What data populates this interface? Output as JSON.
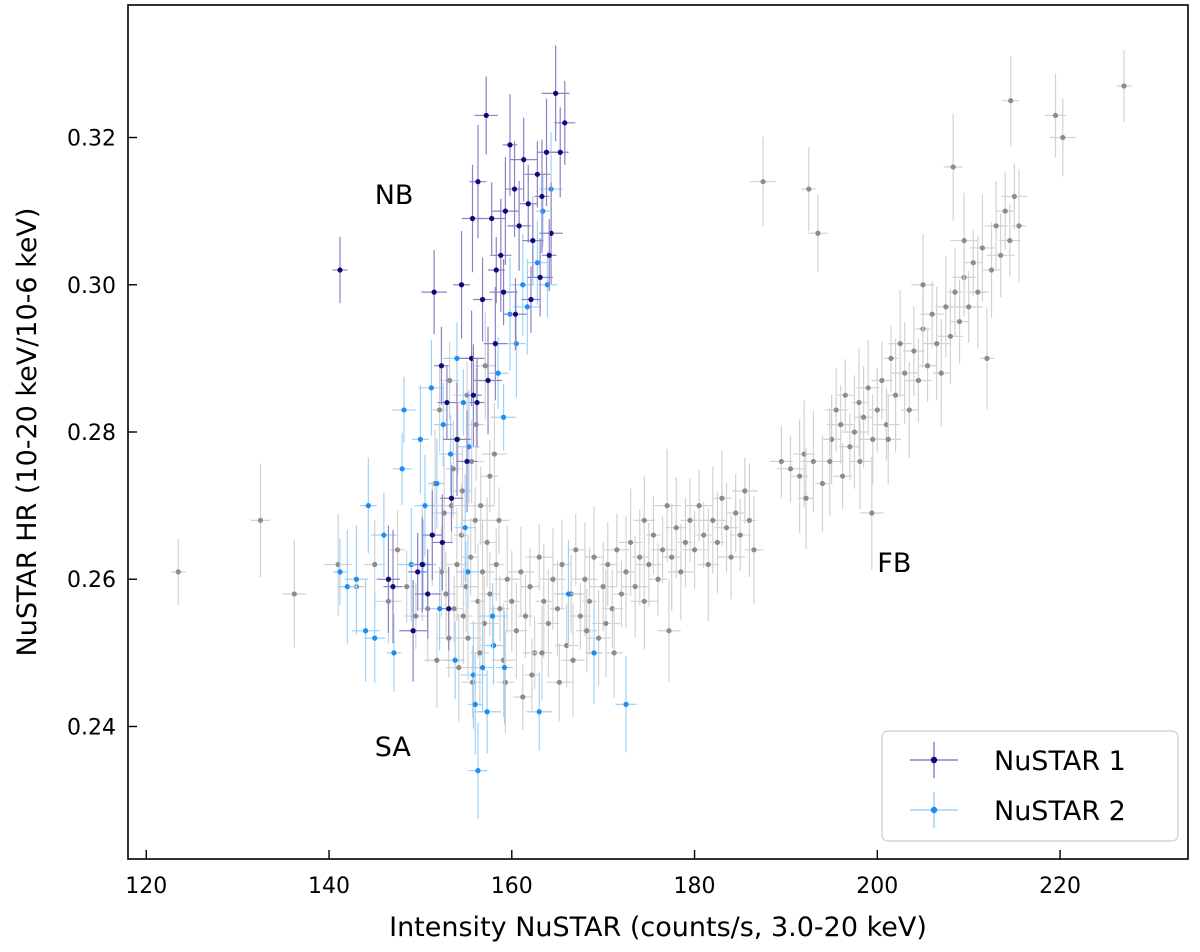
{
  "chart_data": {
    "type": "scatter",
    "title": "",
    "xlabel": "Intensity NuSTAR (counts/s, 3.0-20 keV)",
    "ylabel": "NuSTAR HR (10-20 keV/10-6 keV)",
    "xlim": [
      118,
      234
    ],
    "ylim": [
      0.222,
      0.338
    ],
    "xticks": [
      120,
      140,
      160,
      180,
      200,
      220
    ],
    "yticks": [
      0.24,
      0.26,
      0.28,
      0.3,
      0.32
    ],
    "xtick_labels": [
      "120",
      "140",
      "160",
      "180",
      "200",
      "220"
    ],
    "ytick_labels": [
      "0.24",
      "0.26",
      "0.28",
      "0.30",
      "0.32"
    ],
    "grid": false,
    "legend_position": "bottom-right",
    "annotations": [
      {
        "text": "NB",
        "x": 145,
        "y": 0.311
      },
      {
        "text": "SA",
        "x": 145,
        "y": 0.236
      },
      {
        "text": "FB",
        "x": 200,
        "y": 0.261
      }
    ],
    "series": [
      {
        "name": "background",
        "legend": false,
        "color": "#8c8c8c",
        "error_color": "#d2d2d2",
        "points": [
          [
            123.5,
            0.261
          ],
          [
            132.5,
            0.268
          ],
          [
            136.2,
            0.258
          ],
          [
            141,
            0.262
          ],
          [
            143,
            0.259
          ],
          [
            145,
            0.262
          ],
          [
            146.5,
            0.257
          ],
          [
            147.5,
            0.264
          ],
          [
            148.5,
            0.259
          ],
          [
            149.5,
            0.255
          ],
          [
            150.2,
            0.262
          ],
          [
            150.8,
            0.256
          ],
          [
            151.3,
            0.266
          ],
          [
            151.8,
            0.249
          ],
          [
            152.3,
            0.261
          ],
          [
            152.8,
            0.258
          ],
          [
            153.1,
            0.252
          ],
          [
            153.4,
            0.27
          ],
          [
            153.7,
            0.256
          ],
          [
            154.0,
            0.262
          ],
          [
            154.2,
            0.248
          ],
          [
            154.5,
            0.266
          ],
          [
            154.7,
            0.255
          ],
          [
            155.0,
            0.259
          ],
          [
            155.2,
            0.252
          ],
          [
            155.5,
            0.263
          ],
          [
            155.7,
            0.246
          ],
          [
            156.0,
            0.268
          ],
          [
            156.3,
            0.257
          ],
          [
            156.5,
            0.25
          ],
          [
            156.8,
            0.261
          ],
          [
            157.0,
            0.254
          ],
          [
            157.3,
            0.265
          ],
          [
            157.6,
            0.258
          ],
          [
            158.0,
            0.251
          ],
          [
            158.3,
            0.262
          ],
          [
            158.7,
            0.256
          ],
          [
            159.1,
            0.249
          ],
          [
            159.5,
            0.26
          ],
          [
            160.0,
            0.257
          ],
          [
            160.5,
            0.253
          ],
          [
            161.0,
            0.261
          ],
          [
            161.5,
            0.255
          ],
          [
            162.0,
            0.259
          ],
          [
            162.5,
            0.25
          ],
          [
            163.0,
            0.263
          ],
          [
            163.5,
            0.257
          ],
          [
            164.0,
            0.254
          ],
          [
            164.5,
            0.26
          ],
          [
            165.0,
            0.256
          ],
          [
            165.5,
            0.262
          ],
          [
            166.0,
            0.251
          ],
          [
            166.5,
            0.258
          ],
          [
            167.0,
            0.264
          ],
          [
            167.5,
            0.255
          ],
          [
            168.0,
            0.26
          ],
          [
            168.5,
            0.257
          ],
          [
            169.0,
            0.263
          ],
          [
            169.5,
            0.252
          ],
          [
            170.0,
            0.259
          ],
          [
            170.5,
            0.262
          ],
          [
            171.0,
            0.256
          ],
          [
            171.5,
            0.264
          ],
          [
            172.0,
            0.258
          ],
          [
            172.5,
            0.261
          ],
          [
            173.0,
            0.265
          ],
          [
            173.5,
            0.259
          ],
          [
            174.0,
            0.263
          ],
          [
            174.5,
            0.268
          ],
          [
            175.0,
            0.262
          ],
          [
            175.5,
            0.266
          ],
          [
            176.0,
            0.26
          ],
          [
            176.5,
            0.264
          ],
          [
            177.0,
            0.27
          ],
          [
            177.5,
            0.263
          ],
          [
            178.0,
            0.267
          ],
          [
            178.5,
            0.261
          ],
          [
            179.0,
            0.265
          ],
          [
            179.5,
            0.268
          ],
          [
            180.0,
            0.264
          ],
          [
            180.5,
            0.27
          ],
          [
            181.0,
            0.266
          ],
          [
            181.5,
            0.262
          ],
          [
            182.0,
            0.268
          ],
          [
            182.5,
            0.265
          ],
          [
            183.0,
            0.271
          ],
          [
            183.5,
            0.267
          ],
          [
            184.0,
            0.263
          ],
          [
            184.5,
            0.269
          ],
          [
            185.0,
            0.266
          ],
          [
            185.5,
            0.272
          ],
          [
            186.0,
            0.268
          ],
          [
            186.5,
            0.264
          ],
          [
            177.2,
            0.253
          ],
          [
            174.5,
            0.257
          ],
          [
            171.2,
            0.25
          ],
          [
            168.2,
            0.253
          ],
          [
            165.2,
            0.246
          ],
          [
            162.2,
            0.247
          ],
          [
            161.2,
            0.244
          ],
          [
            166.7,
            0.249
          ],
          [
            170.3,
            0.254
          ],
          [
            159.3,
            0.246
          ],
          [
            163.3,
            0.25
          ],
          [
            187.5,
            0.314
          ],
          [
            192.5,
            0.313
          ],
          [
            193.5,
            0.307
          ],
          [
            189.5,
            0.276
          ],
          [
            190.5,
            0.275
          ],
          [
            191.5,
            0.274
          ],
          [
            192.0,
            0.277
          ],
          [
            193.0,
            0.276
          ],
          [
            194.0,
            0.273
          ],
          [
            195.0,
            0.279
          ],
          [
            195.5,
            0.283
          ],
          [
            196.0,
            0.281
          ],
          [
            196.5,
            0.285
          ],
          [
            197.0,
            0.278
          ],
          [
            197.5,
            0.28
          ],
          [
            198.0,
            0.284
          ],
          [
            198.5,
            0.282
          ],
          [
            199.0,
            0.286
          ],
          [
            199.5,
            0.279
          ],
          [
            200.0,
            0.283
          ],
          [
            200.5,
            0.287
          ],
          [
            201.0,
            0.281
          ],
          [
            201.5,
            0.29
          ],
          [
            202.0,
            0.285
          ],
          [
            202.5,
            0.292
          ],
          [
            203.0,
            0.288
          ],
          [
            203.5,
            0.283
          ],
          [
            204.0,
            0.291
          ],
          [
            204.5,
            0.287
          ],
          [
            205.0,
            0.294
          ],
          [
            205.5,
            0.289
          ],
          [
            206.0,
            0.296
          ],
          [
            206.5,
            0.292
          ],
          [
            207.0,
            0.288
          ],
          [
            207.5,
            0.297
          ],
          [
            208.0,
            0.293
          ],
          [
            208.5,
            0.299
          ],
          [
            209.0,
            0.295
          ],
          [
            209.5,
            0.301
          ],
          [
            210.0,
            0.297
          ],
          [
            210.5,
            0.303
          ],
          [
            211.0,
            0.299
          ],
          [
            211.5,
            0.305
          ],
          [
            212.0,
            0.29
          ],
          [
            212.5,
            0.302
          ],
          [
            213.0,
            0.308
          ],
          [
            213.5,
            0.304
          ],
          [
            214.0,
            0.31
          ],
          [
            214.5,
            0.306
          ],
          [
            215.0,
            0.312
          ],
          [
            215.5,
            0.308
          ],
          [
            208.3,
            0.316
          ],
          [
            205.0,
            0.3
          ],
          [
            209.5,
            0.306
          ],
          [
            214.6,
            0.325
          ],
          [
            219.5,
            0.323
          ],
          [
            220.3,
            0.32
          ],
          [
            227.0,
            0.327
          ],
          [
            196.2,
            0.274
          ],
          [
            199.4,
            0.269
          ],
          [
            194.8,
            0.276
          ],
          [
            192.2,
            0.271
          ],
          [
            198.1,
            0.276
          ],
          [
            201.2,
            0.279
          ],
          [
            152.1,
            0.283
          ],
          [
            153.2,
            0.287
          ],
          [
            154.1,
            0.279
          ],
          [
            155.1,
            0.285
          ],
          [
            156.1,
            0.281
          ],
          [
            157.1,
            0.289
          ],
          [
            158.1,
            0.277
          ],
          [
            153.6,
            0.275
          ],
          [
            154.6,
            0.272
          ],
          [
            155.6,
            0.276
          ],
          [
            156.6,
            0.27
          ],
          [
            157.6,
            0.274
          ],
          [
            158.6,
            0.268
          ],
          [
            152.6,
            0.269
          ],
          [
            151.6,
            0.273
          ]
        ]
      },
      {
        "name": "NuSTAR 1",
        "legend": true,
        "color": "#0a0a78",
        "error_color": "#8c82c8",
        "points": [
          [
            141.2,
            0.302
          ],
          [
            147.0,
            0.259
          ],
          [
            146.5,
            0.26
          ],
          [
            149.2,
            0.253
          ],
          [
            150.2,
            0.262
          ],
          [
            151.3,
            0.266
          ],
          [
            151.5,
            0.299
          ],
          [
            152.3,
            0.289
          ],
          [
            152.9,
            0.284
          ],
          [
            153.4,
            0.271
          ],
          [
            154.0,
            0.279
          ],
          [
            154.5,
            0.3
          ],
          [
            155.1,
            0.276
          ],
          [
            155.6,
            0.29
          ],
          [
            156.2,
            0.284
          ],
          [
            156.8,
            0.298
          ],
          [
            157.2,
            0.323
          ],
          [
            157.8,
            0.309
          ],
          [
            158.3,
            0.302
          ],
          [
            158.8,
            0.304
          ],
          [
            159.3,
            0.31
          ],
          [
            159.8,
            0.319
          ],
          [
            160.3,
            0.313
          ],
          [
            160.8,
            0.308
          ],
          [
            161.3,
            0.317
          ],
          [
            161.8,
            0.311
          ],
          [
            162.3,
            0.306
          ],
          [
            162.8,
            0.315
          ],
          [
            163.3,
            0.312
          ],
          [
            163.8,
            0.318
          ],
          [
            164.3,
            0.307
          ],
          [
            164.8,
            0.326
          ],
          [
            165.3,
            0.318
          ],
          [
            165.8,
            0.322
          ],
          [
            163.1,
            0.301
          ],
          [
            164.1,
            0.304
          ],
          [
            162.1,
            0.298
          ],
          [
            158.2,
            0.292
          ],
          [
            157.4,
            0.287
          ],
          [
            155.8,
            0.285
          ],
          [
            152.4,
            0.265
          ],
          [
            150.8,
            0.258
          ],
          [
            153.1,
            0.256
          ],
          [
            149.7,
            0.261
          ],
          [
            160.4,
            0.296
          ],
          [
            159.1,
            0.299
          ],
          [
            156.3,
            0.314
          ],
          [
            155.7,
            0.309
          ]
        ]
      },
      {
        "name": "NuSTAR 2",
        "legend": true,
        "color": "#1e8cf0",
        "error_color": "#a0d2f8",
        "points": [
          [
            141.2,
            0.261
          ],
          [
            142.0,
            0.259
          ],
          [
            143.0,
            0.26
          ],
          [
            144.0,
            0.253
          ],
          [
            144.3,
            0.27
          ],
          [
            145.0,
            0.252
          ],
          [
            146.0,
            0.266
          ],
          [
            147.1,
            0.25
          ],
          [
            148.0,
            0.275
          ],
          [
            148.2,
            0.283
          ],
          [
            149.0,
            0.262
          ],
          [
            150.0,
            0.279
          ],
          [
            150.5,
            0.27
          ],
          [
            151.2,
            0.286
          ],
          [
            151.8,
            0.273
          ],
          [
            152.5,
            0.281
          ],
          [
            153.3,
            0.277
          ],
          [
            154.0,
            0.29
          ],
          [
            154.7,
            0.284
          ],
          [
            155.3,
            0.278
          ],
          [
            155.8,
            0.247
          ],
          [
            156.0,
            0.243
          ],
          [
            156.3,
            0.234
          ],
          [
            156.8,
            0.248
          ],
          [
            157.3,
            0.242
          ],
          [
            158.0,
            0.251
          ],
          [
            158.5,
            0.288
          ],
          [
            159.1,
            0.282
          ],
          [
            159.8,
            0.296
          ],
          [
            160.5,
            0.292
          ],
          [
            161.2,
            0.3
          ],
          [
            161.7,
            0.297
          ],
          [
            162.3,
            0.306
          ],
          [
            162.8,
            0.303
          ],
          [
            163.0,
            0.242
          ],
          [
            163.4,
            0.31
          ],
          [
            163.9,
            0.3
          ],
          [
            164.3,
            0.313
          ],
          [
            166.2,
            0.258
          ],
          [
            169.0,
            0.25
          ],
          [
            172.5,
            0.243
          ],
          [
            150.3,
            0.262
          ],
          [
            152.1,
            0.256
          ],
          [
            153.8,
            0.249
          ],
          [
            155.2,
            0.261
          ],
          [
            157.9,
            0.255
          ],
          [
            159.2,
            0.248
          ],
          [
            154.9,
            0.267
          ]
        ]
      }
    ]
  }
}
